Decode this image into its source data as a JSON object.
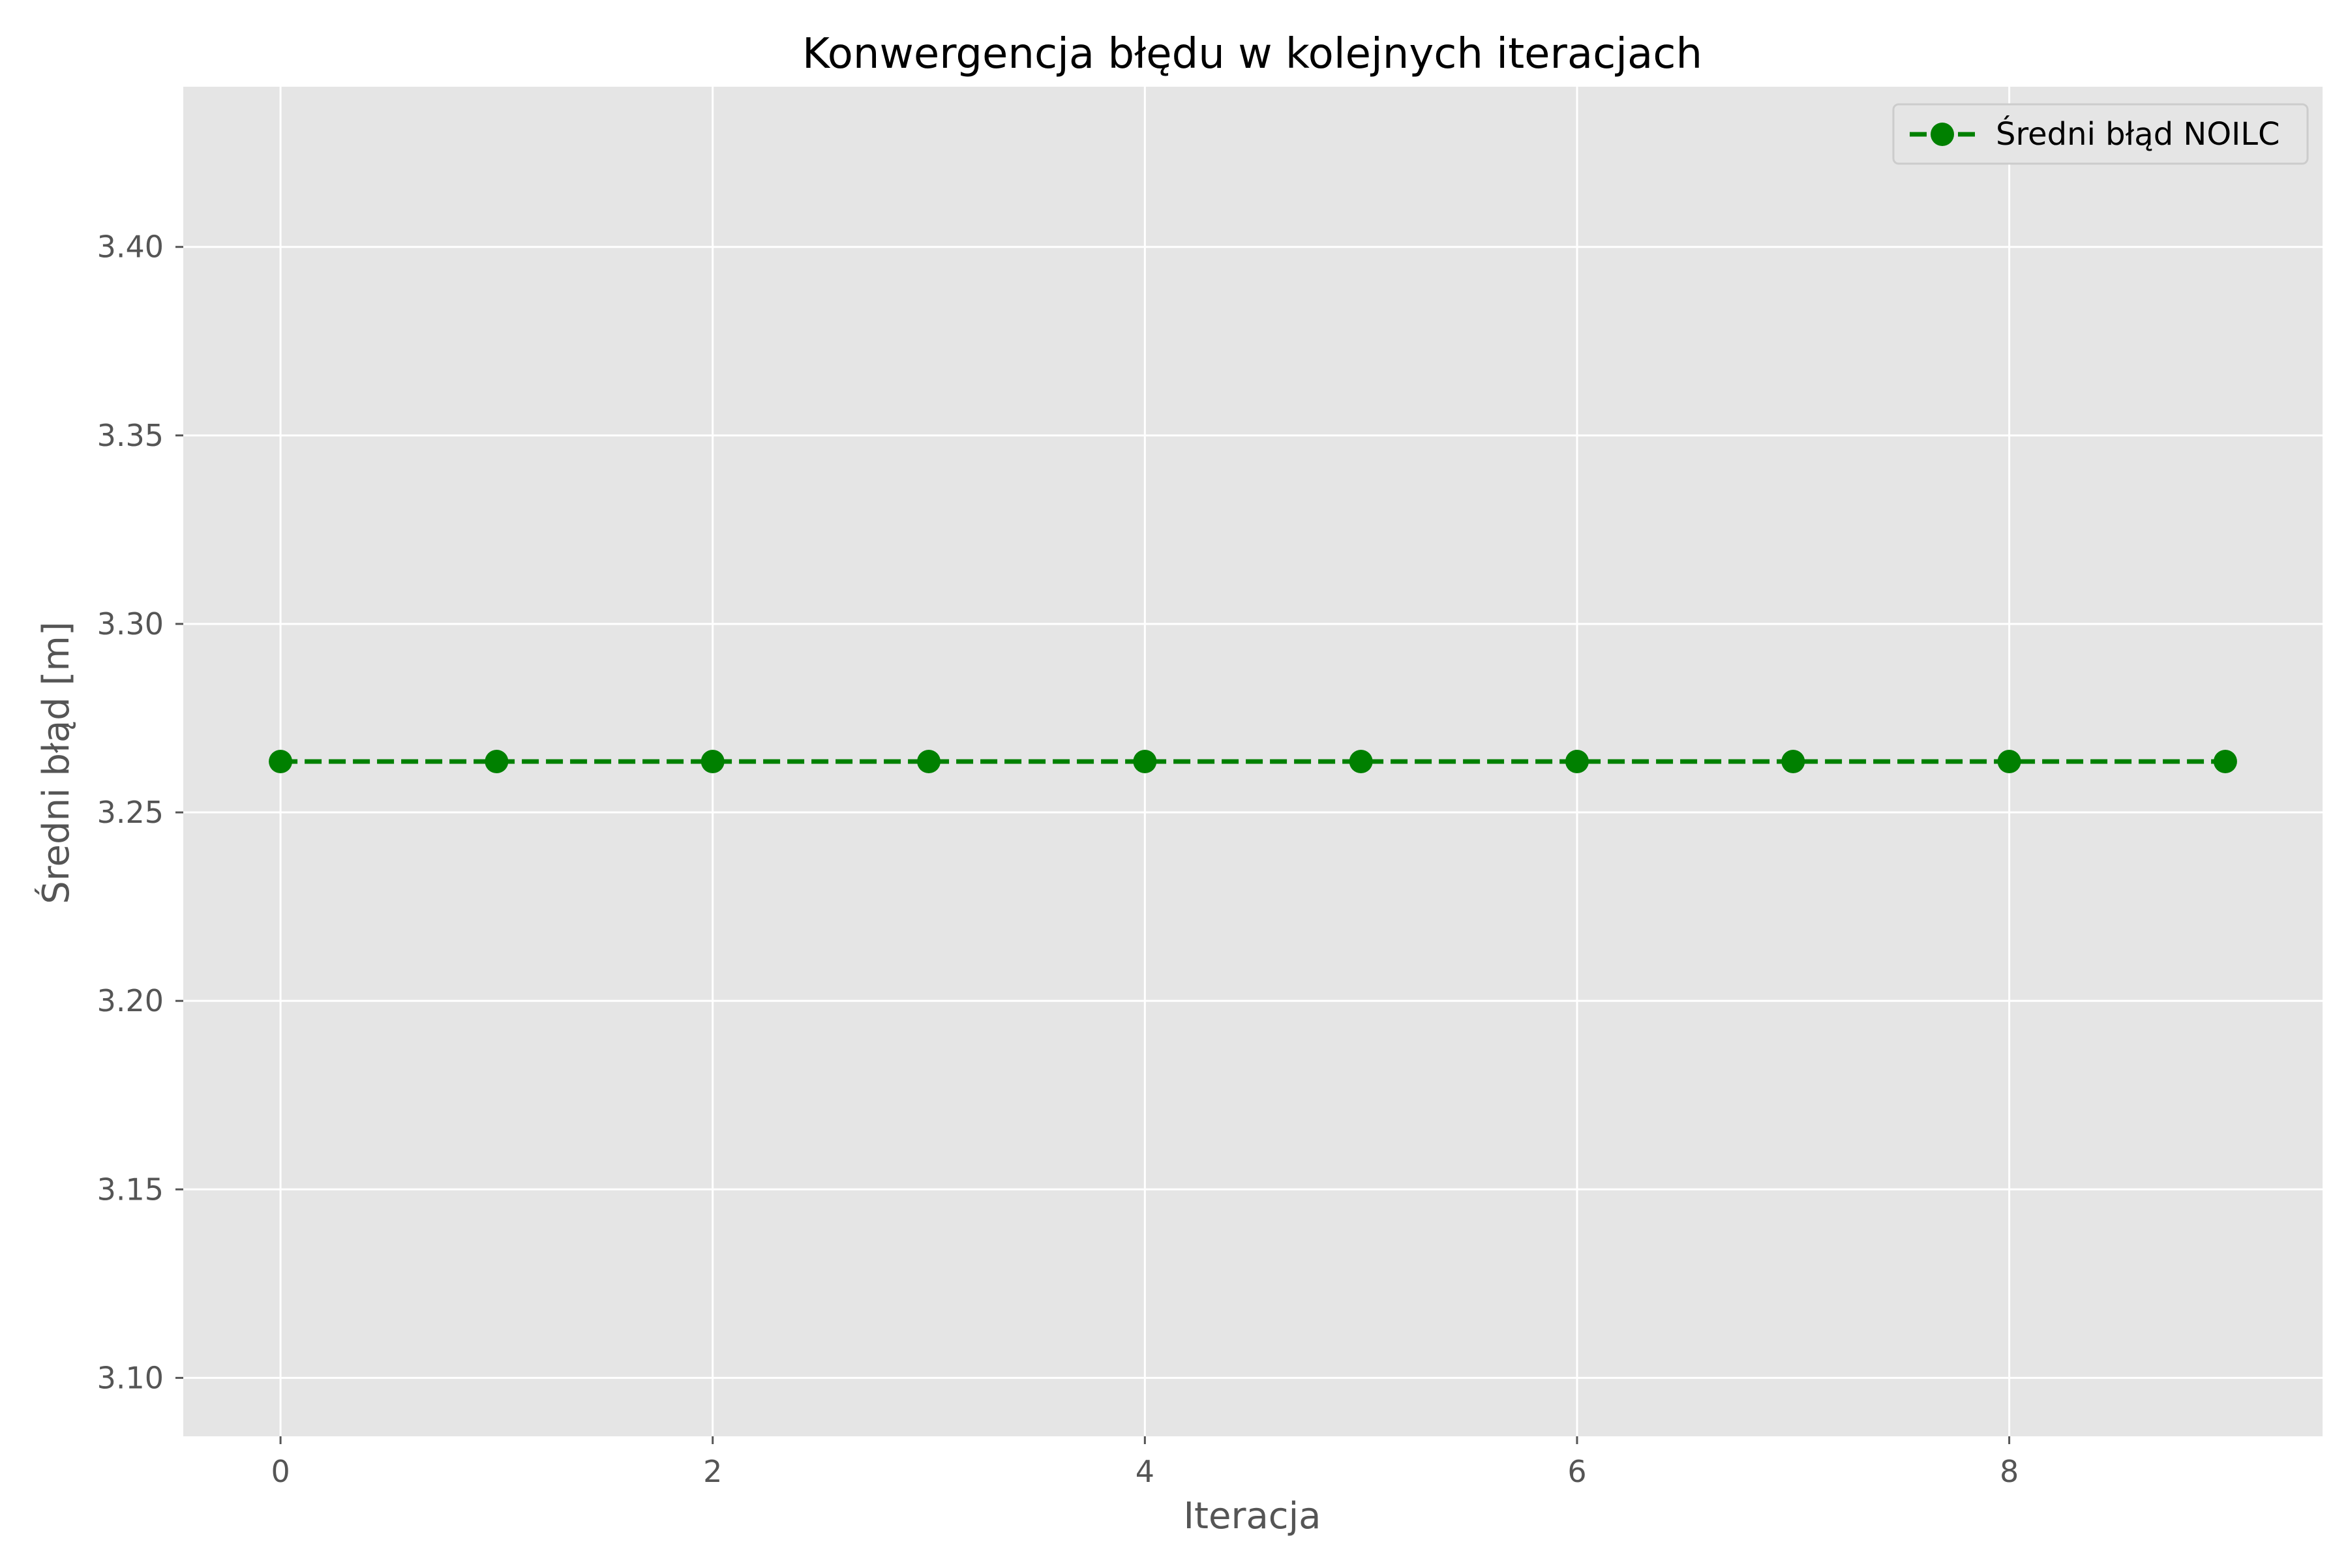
{
  "chart_data": {
    "type": "line",
    "title": "Konwergencja błędu w kolejnych iteracjach",
    "xlabel": "Iteracja",
    "ylabel": "Średni błąd [m]",
    "x": [
      0,
      1,
      2,
      3,
      4,
      5,
      6,
      7,
      8,
      9
    ],
    "series": [
      {
        "name": "Średni błąd NOILC",
        "values": [
          3.2635,
          3.2635,
          3.2635,
          3.2635,
          3.2635,
          3.2635,
          3.2635,
          3.2635,
          3.2635,
          3.2635
        ],
        "color": "#008000",
        "line_style": "dashed",
        "marker": "circle"
      }
    ],
    "xlim": [
      -0.45,
      9.45
    ],
    "ylim": [
      3.0845,
      3.4425
    ],
    "xticks": [
      0,
      2,
      4,
      6,
      8
    ],
    "xtick_labels": [
      "0",
      "2",
      "4",
      "6",
      "8"
    ],
    "yticks": [
      3.1,
      3.15,
      3.2,
      3.25,
      3.3,
      3.35,
      3.4
    ],
    "ytick_labels": [
      "3.10",
      "3.15",
      "3.20",
      "3.25",
      "3.30",
      "3.35",
      "3.40"
    ],
    "grid": true,
    "legend_position": "top-right",
    "plot_background": "#e5e5e5",
    "grid_color": "#ffffff"
  }
}
